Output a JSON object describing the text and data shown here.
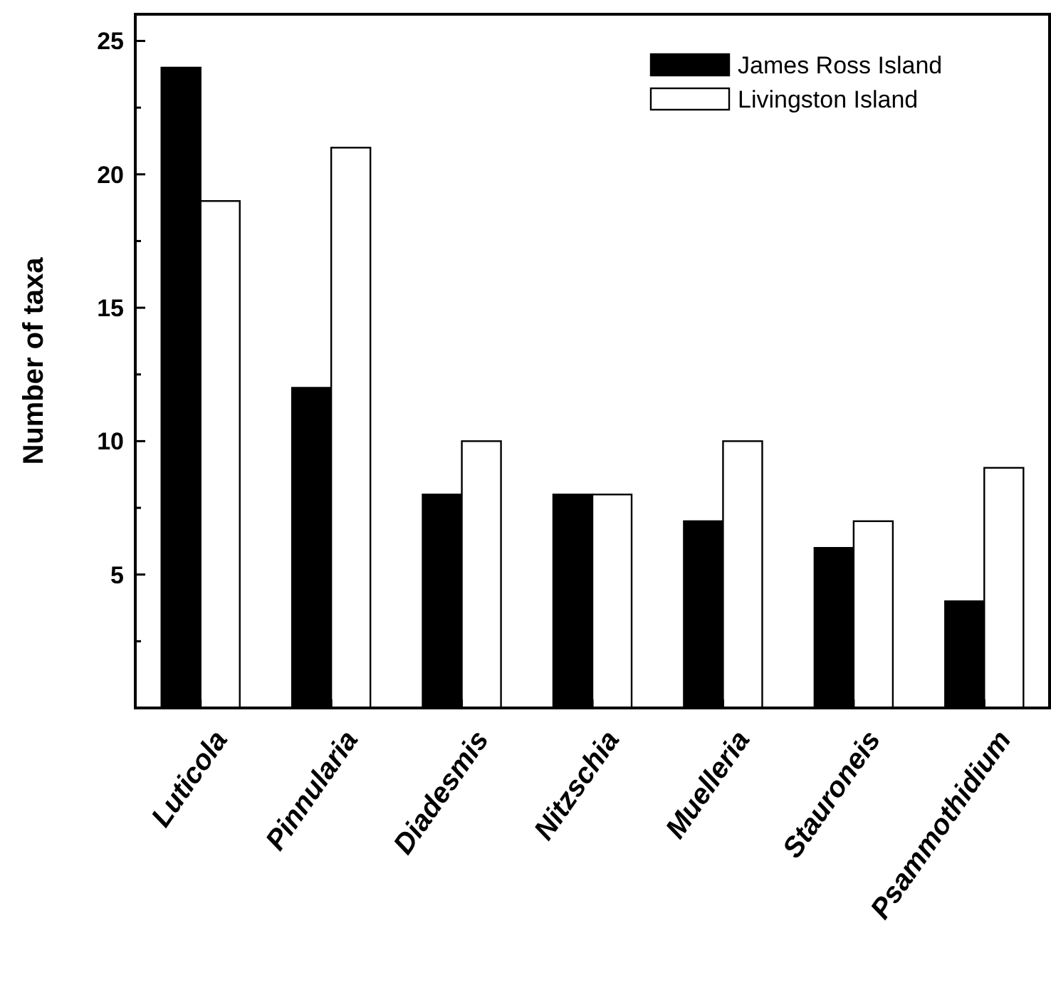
{
  "chart_data": {
    "type": "bar",
    "ylabel": "Number of taxa",
    "categories": [
      "Luticola",
      "Pinnularia",
      "Diadesmis",
      "Nitzschia",
      "Muelleria",
      "Stauroneis",
      "Psammothidium"
    ],
    "series": [
      {
        "name": "James Ross Island",
        "color": "#000000",
        "values": [
          24,
          12,
          8,
          8,
          7,
          6,
          4
        ]
      },
      {
        "name": "Livingston Island",
        "color": "#ffffff",
        "values": [
          19,
          21,
          10,
          8,
          10,
          7,
          9
        ]
      }
    ],
    "ylim": [
      0,
      26
    ],
    "yticks": [
      {
        "value": 2.5,
        "label": null
      },
      5,
      {
        "value": 7.5,
        "label": null
      },
      10,
      {
        "value": 12.5,
        "label": null
      },
      15,
      {
        "value": 17.5,
        "label": null
      },
      20,
      {
        "value": 22.5,
        "label": null
      },
      25
    ],
    "legend": "top right",
    "grid": false
  }
}
